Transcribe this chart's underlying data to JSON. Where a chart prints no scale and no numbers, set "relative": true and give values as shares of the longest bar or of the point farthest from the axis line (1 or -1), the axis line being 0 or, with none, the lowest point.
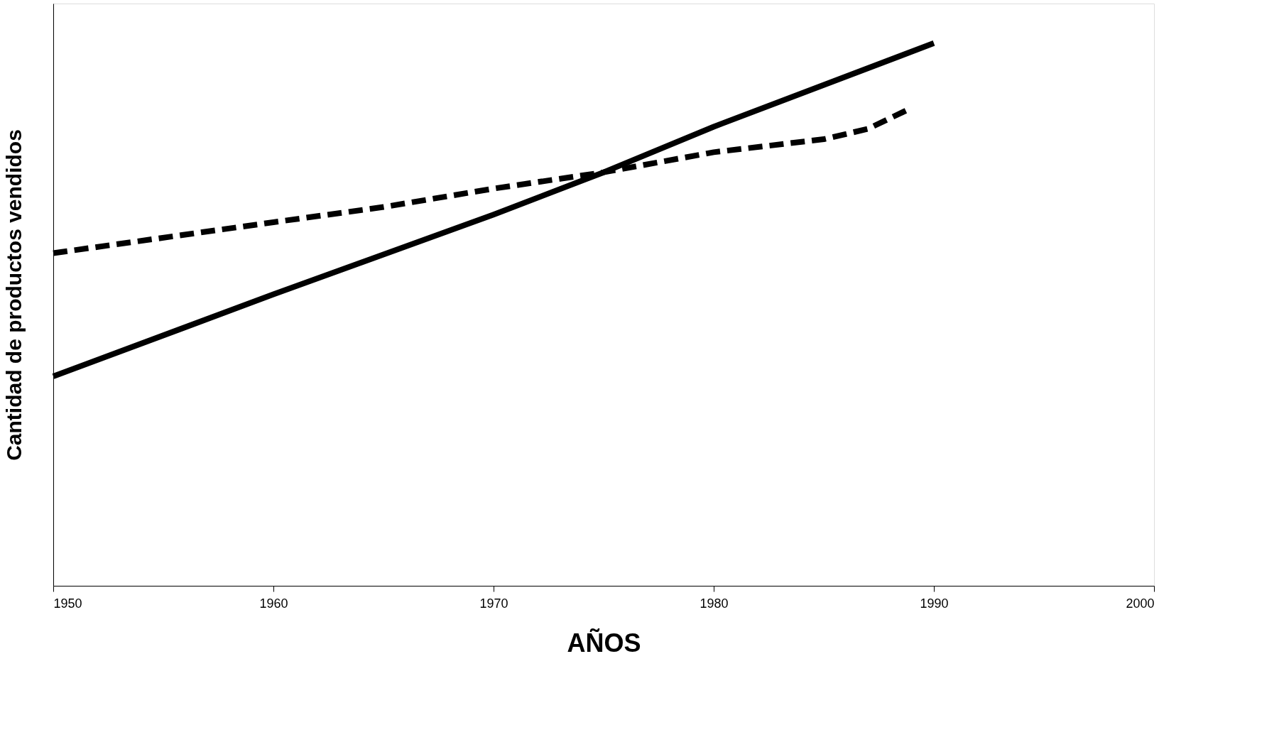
{
  "chart_data": {
    "type": "line",
    "relative": true,
    "xlabel": "AÑOS",
    "ylabel": "Cantidad de productos vendidos",
    "xlim": [
      1950,
      2000
    ],
    "xticks": [
      1950,
      1960,
      1970,
      1980,
      1990,
      2000
    ],
    "grid": false,
    "marker": "none",
    "series": [
      {
        "color": "#000000",
        "line_style": "solid",
        "x": [
          1950,
          1960,
          1970,
          1975,
          1980,
          1990
        ],
        "values": [
          0.386,
          0.537,
          0.684,
          0.762,
          0.846,
          1.0
        ]
      },
      {
        "color": "#000000",
        "line_style": "dashed",
        "x": [
          1950,
          1960,
          1965,
          1970,
          1975,
          1980,
          1985,
          1987,
          1989
        ],
        "values": [
          0.613,
          0.67,
          0.698,
          0.732,
          0.762,
          0.799,
          0.823,
          0.842,
          0.881
        ]
      }
    ]
  }
}
